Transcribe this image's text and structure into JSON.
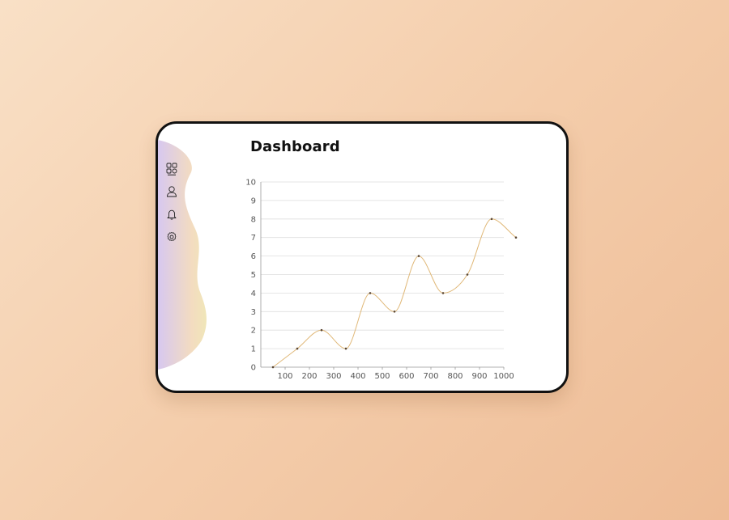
{
  "page": {
    "title": "Dashboard"
  },
  "sidebar": {
    "items": [
      {
        "icon": "grid-icon",
        "active": true
      },
      {
        "icon": "user-icon",
        "active": false
      },
      {
        "icon": "bell-icon",
        "active": false
      },
      {
        "icon": "gear-icon",
        "active": false
      }
    ],
    "gradient_colors": [
      "#d7c8f0",
      "#f0e6b8"
    ]
  },
  "colors": {
    "line": "#e0b878",
    "point": "#5a4632",
    "grid": "#dddddd",
    "frame": "#111111"
  },
  "chart_data": {
    "type": "line",
    "title": "",
    "xlabel": "",
    "ylabel": "",
    "smooth": true,
    "grid": "horizontal",
    "legend": "none",
    "xlim": [
      0,
      1000
    ],
    "ylim": [
      0,
      10
    ],
    "x_ticks": [
      100,
      200,
      300,
      400,
      500,
      600,
      700,
      800,
      900,
      1000
    ],
    "y_ticks": [
      0,
      1,
      2,
      3,
      4,
      5,
      6,
      7,
      8,
      9,
      10
    ],
    "series": [
      {
        "x": [
          50,
          150,
          250,
          350,
          450,
          550,
          650,
          750,
          850,
          950,
          1050
        ],
        "values": [
          0,
          1,
          2,
          1,
          4,
          3,
          6,
          4,
          5,
          8,
          7
        ]
      }
    ]
  }
}
